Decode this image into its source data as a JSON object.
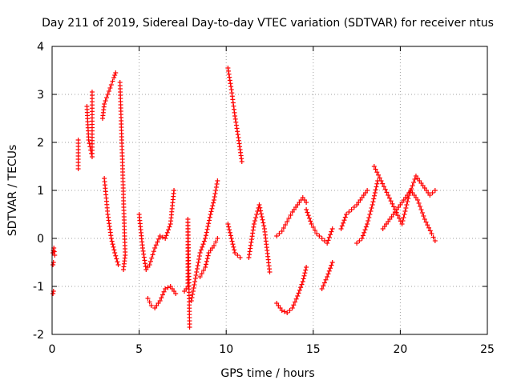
{
  "chart_data": {
    "type": "scatter",
    "title": "Day 211 of 2019, Sidereal Day-to-day VTEC variation (SDTVAR) for receiver ntus",
    "xlabel": "GPS time / hours",
    "ylabel": "SDTVAR / TECUs",
    "xlim": [
      0,
      25
    ],
    "ylim": [
      -2,
      4
    ],
    "xticks": [
      "0",
      "5",
      "10",
      "15",
      "20",
      "25"
    ],
    "yticks": [
      "-2",
      "-1",
      "0",
      "1",
      "2",
      "3",
      "4"
    ],
    "grid": true,
    "marker": "+",
    "color": "#ff0000",
    "segments": [
      {
        "x": [
          0.05,
          0.1,
          0.15
        ],
        "y": [
          -0.3,
          -0.2,
          -0.35
        ]
      },
      {
        "x": [
          0.05,
          0.08
        ],
        "y": [
          -0.55,
          -0.5
        ]
      },
      {
        "x": [
          0.05,
          0.08
        ],
        "y": [
          -1.15,
          -1.1
        ]
      },
      {
        "x": [
          1.5,
          1.5
        ],
        "y": [
          1.45,
          2.05
        ]
      },
      {
        "x": [
          2.0,
          2.1,
          2.3,
          2.3
        ],
        "y": [
          2.75,
          2.05,
          1.7,
          3.05
        ]
      },
      {
        "x": [
          2.9,
          3.0,
          3.2,
          3.4,
          3.55,
          3.65
        ],
        "y": [
          2.5,
          2.8,
          3.0,
          3.2,
          3.35,
          3.45
        ]
      },
      {
        "x": [
          3.0,
          3.2,
          3.4,
          3.6,
          3.8
        ],
        "y": [
          1.25,
          0.5,
          0.0,
          -0.3,
          -0.55
        ]
      },
      {
        "x": [
          3.9,
          4.1,
          4.2,
          4.1
        ],
        "y": [
          3.25,
          0.85,
          -0.35,
          -0.65
        ]
      },
      {
        "x": [
          5.0,
          5.2,
          5.4,
          5.6,
          5.9,
          6.2,
          6.5,
          6.8,
          7.0
        ],
        "y": [
          0.5,
          -0.2,
          -0.65,
          -0.55,
          -0.2,
          0.05,
          0.0,
          0.3,
          1.0
        ]
      },
      {
        "x": [
          5.5,
          5.7,
          5.9,
          6.2,
          6.5,
          6.8,
          7.1
        ],
        "y": [
          -1.25,
          -1.4,
          -1.45,
          -1.3,
          -1.05,
          -1.0,
          -1.15
        ]
      },
      {
        "x": [
          7.6,
          7.8,
          7.8,
          7.9
        ],
        "y": [
          -1.1,
          -1.0,
          0.4,
          -1.85
        ]
      },
      {
        "x": [
          8.0,
          8.2,
          8.5,
          8.8,
          9.1,
          9.3,
          9.5
        ],
        "y": [
          -1.3,
          -0.9,
          -0.3,
          0.0,
          0.5,
          0.8,
          1.2
        ]
      },
      {
        "x": [
          8.5,
          8.8,
          9.0,
          9.3,
          9.5
        ],
        "y": [
          -0.8,
          -0.6,
          -0.3,
          -0.15,
          0.0
        ]
      },
      {
        "x": [
          10.1,
          10.3,
          10.5,
          10.7,
          10.9
        ],
        "y": [
          3.55,
          3.1,
          2.55,
          2.1,
          1.6
        ]
      },
      {
        "x": [
          10.1,
          10.3,
          10.5,
          10.8
        ],
        "y": [
          0.3,
          0.0,
          -0.3,
          -0.4
        ]
      },
      {
        "x": [
          11.3,
          11.6,
          11.9,
          12.2,
          12.5
        ],
        "y": [
          -0.4,
          0.3,
          0.7,
          0.2,
          -0.7
        ]
      },
      {
        "x": [
          12.9,
          13.2,
          13.5,
          13.8,
          14.1,
          14.4,
          14.6
        ],
        "y": [
          -1.35,
          -1.5,
          -1.55,
          -1.45,
          -1.2,
          -0.9,
          -0.6
        ]
      },
      {
        "x": [
          12.9,
          13.2,
          13.5,
          13.8,
          14.1,
          14.4,
          14.6
        ],
        "y": [
          0.05,
          0.15,
          0.35,
          0.55,
          0.7,
          0.85,
          0.75
        ]
      },
      {
        "x": [
          14.6,
          14.9,
          15.2,
          15.5,
          15.8,
          16.1
        ],
        "y": [
          0.6,
          0.3,
          0.1,
          0.0,
          -0.1,
          0.2
        ]
      },
      {
        "x": [
          15.5,
          15.8,
          16.1
        ],
        "y": [
          -1.05,
          -0.8,
          -0.5
        ]
      },
      {
        "x": [
          16.6,
          16.9,
          17.2,
          17.5,
          17.8,
          18.1
        ],
        "y": [
          0.2,
          0.5,
          0.6,
          0.7,
          0.85,
          1.0
        ]
      },
      {
        "x": [
          17.5,
          17.8,
          18.1,
          18.4,
          18.7
        ],
        "y": [
          -0.1,
          0.0,
          0.3,
          0.7,
          1.2
        ]
      },
      {
        "x": [
          18.5,
          18.9,
          19.3,
          19.7,
          20.1,
          20.5,
          20.9,
          21.3,
          21.7,
          22.0
        ],
        "y": [
          1.5,
          1.2,
          0.9,
          0.6,
          0.3,
          0.9,
          1.3,
          1.1,
          0.9,
          1.0
        ]
      },
      {
        "x": [
          19.0,
          19.4,
          19.8,
          20.2,
          20.6,
          21.0,
          21.4,
          21.8,
          22.0
        ],
        "y": [
          0.2,
          0.4,
          0.6,
          0.8,
          1.0,
          0.8,
          0.4,
          0.1,
          -0.05
        ]
      }
    ]
  }
}
